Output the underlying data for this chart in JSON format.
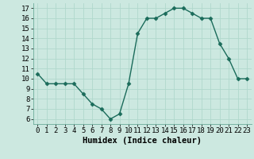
{
  "x": [
    0,
    1,
    2,
    3,
    4,
    5,
    6,
    7,
    8,
    9,
    10,
    11,
    12,
    13,
    14,
    15,
    16,
    17,
    18,
    19,
    20,
    21,
    22,
    23
  ],
  "y": [
    10.5,
    9.5,
    9.5,
    9.5,
    9.5,
    8.5,
    7.5,
    7.0,
    6.0,
    6.5,
    9.5,
    14.5,
    16.0,
    16.0,
    16.5,
    17.0,
    17.0,
    16.5,
    16.0,
    16.0,
    13.5,
    12.0,
    10.0,
    10.0
  ],
  "line_color": "#1a6b5a",
  "marker": "D",
  "marker_size": 2.5,
  "bg_color": "#cce8e0",
  "grid_color": "#b0d8cc",
  "xlabel": "Humidex (Indice chaleur)",
  "ylim": [
    5.5,
    17.5
  ],
  "yticks": [
    6,
    7,
    8,
    9,
    10,
    11,
    12,
    13,
    14,
    15,
    16,
    17
  ],
  "label_fontsize": 7.5,
  "tick_fontsize": 6.5
}
